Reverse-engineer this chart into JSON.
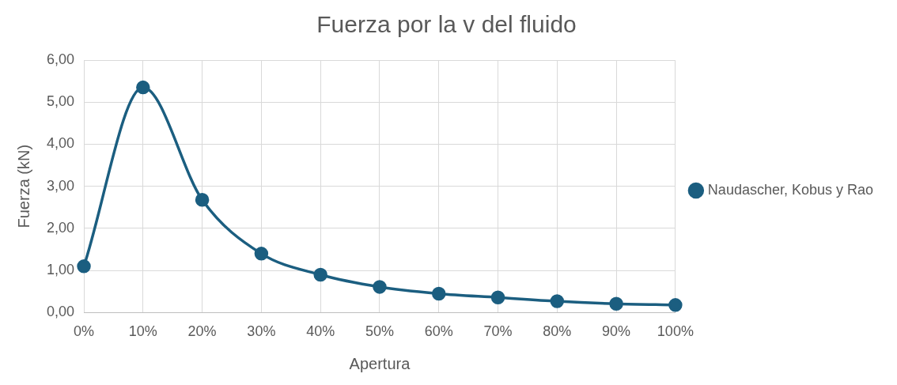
{
  "chart_data": {
    "type": "line",
    "title": "Fuerza por la v del fluido",
    "xlabel": "Apertura",
    "ylabel": "Fuerza (kN)",
    "categories": [
      "0%",
      "10%",
      "20%",
      "30%",
      "40%",
      "50%",
      "60%",
      "70%",
      "80%",
      "90%",
      "100%"
    ],
    "series": [
      {
        "name": "Naudascher, Kobus y Rao",
        "color": "#1b5e80",
        "values": [
          1.1,
          5.35,
          2.68,
          1.4,
          0.9,
          0.61,
          0.45,
          0.36,
          0.27,
          0.21,
          0.18
        ]
      }
    ],
    "ylim": [
      0,
      6
    ],
    "yticks": [
      {
        "value": 0,
        "label": "0,00"
      },
      {
        "value": 1,
        "label": "1,00"
      },
      {
        "value": 2,
        "label": "2,00"
      },
      {
        "value": 3,
        "label": "3,00"
      },
      {
        "value": 4,
        "label": "4,00"
      },
      {
        "value": 5,
        "label": "5,00"
      },
      {
        "value": 6,
        "label": "6,00"
      }
    ],
    "grid": true,
    "legend": "right",
    "marker": "circle",
    "line_style": "solid"
  }
}
